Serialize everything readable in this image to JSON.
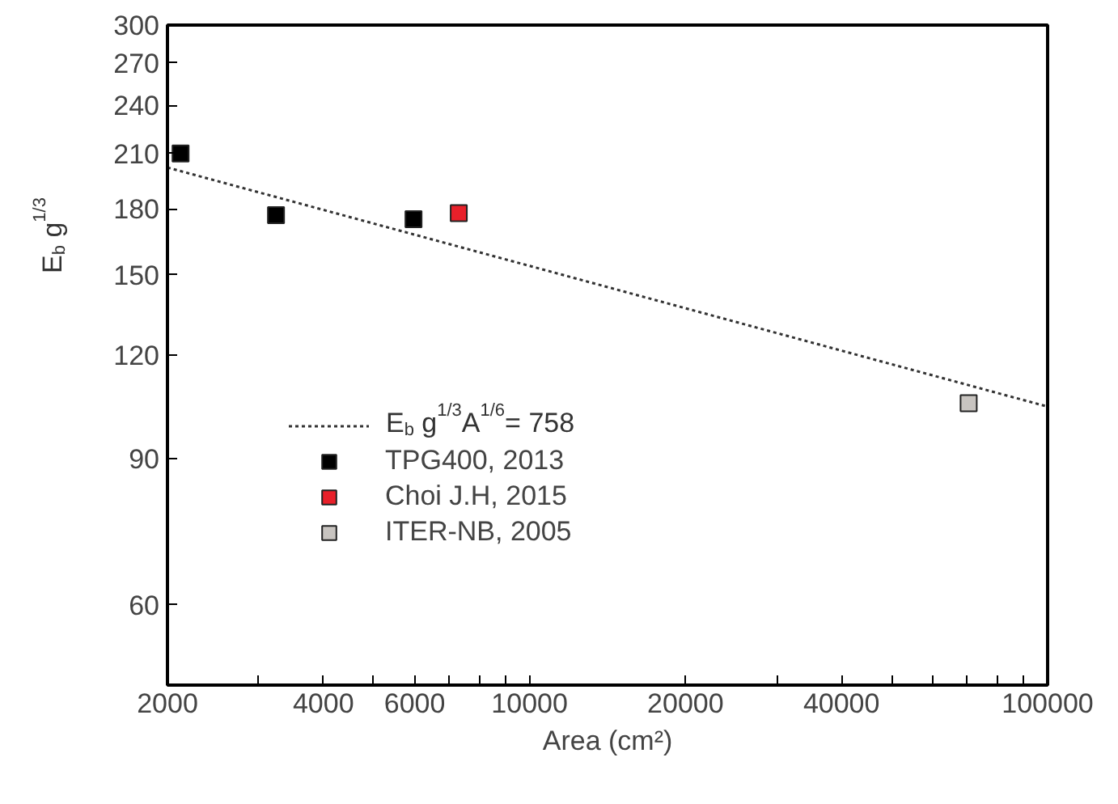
{
  "chart_data": {
    "type": "scatter",
    "xlabel": "Area (cm²)",
    "ylabel": "E$_{b}$ g$^{1/3}$",
    "log": "xy",
    "marker": "square",
    "legend": "left",
    "grid": false,
    "xlim": [
      2000,
      100000
    ],
    "ylim": [
      48,
      300
    ],
    "xticks": [
      2000,
      {
        "value": 3000,
        "label": null
      },
      4000,
      {
        "value": 5000,
        "label": null
      },
      6000,
      {
        "value": 7000,
        "label": null
      },
      {
        "value": 8000,
        "label": null
      },
      {
        "value": 9000,
        "label": null
      },
      10000,
      20000,
      {
        "value": 30000,
        "label": null
      },
      40000,
      {
        "value": 50000,
        "label": null
      },
      {
        "value": 60000,
        "label": null
      },
      {
        "value": 70000,
        "label": null
      },
      {
        "value": 80000,
        "label": null
      },
      {
        "value": 90000,
        "label": null
      },
      100000
    ],
    "yticks": [
      60,
      90,
      120,
      150,
      180,
      210,
      240,
      270,
      300
    ],
    "series": [
      {
        "name": "E$_{b}$ g$^{1/3}$A$^{1/6}$= 758",
        "type": "line",
        "marker": "none",
        "line_style": "dotted",
        "color": "#333333",
        "x": [
          2000,
          100000
        ],
        "values": [
          202,
          104
        ]
      },
      {
        "name": "TPG400, 2013",
        "color": "#000000",
        "x": [
          2120,
          3240,
          5970
        ],
        "values": [
          210,
          177,
          175
        ]
      },
      {
        "name": "Choi J.H, 2015",
        "color": "#e8202a",
        "x": [
          7300
        ],
        "values": [
          178
        ]
      },
      {
        "name": "ITER-NB, 2005",
        "color": "#c8c4c0",
        "x": [
          70400
        ],
        "values": [
          105
        ]
      }
    ]
  }
}
